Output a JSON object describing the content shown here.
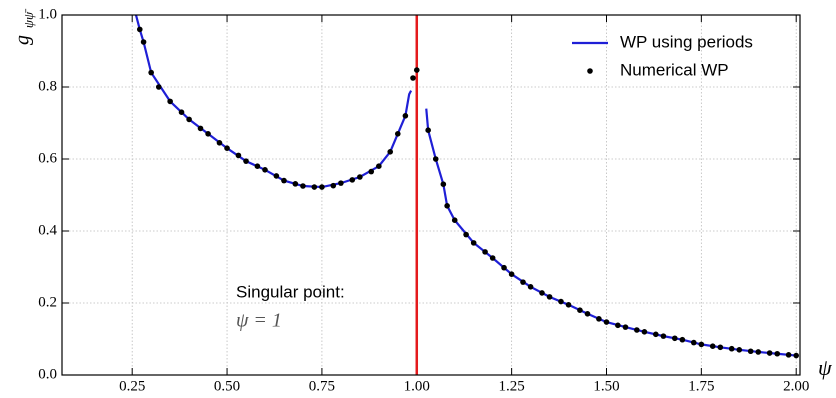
{
  "chart_data": {
    "type": "line",
    "xlabel": "ψ",
    "ylabel": "g",
    "ylabel_sub": "ψψ̄",
    "annotation_title": "Singular point:",
    "annotation_eq": "ψ = 1",
    "vline": {
      "x": 1.0,
      "color": "#e41a1c"
    },
    "xlim": [
      0.065,
      2.01
    ],
    "ylim": [
      0,
      1.0
    ],
    "xticks": [
      0.25,
      {
        "value": 0.5,
        "label": "0.50"
      },
      0.75,
      {
        "value": 1.0,
        "label": "1.00"
      },
      1.25,
      {
        "value": 1.5,
        "label": "1.50"
      },
      1.75,
      {
        "value": 2.0,
        "label": "2.00"
      }
    ],
    "yticks": [
      {
        "value": 0.0,
        "label": "0.0"
      },
      0.2,
      0.4,
      0.6,
      0.8,
      {
        "value": 1.0,
        "label": "1.0"
      }
    ],
    "grid": true,
    "legend": "upper right",
    "series": [
      {
        "name": "WP using periods",
        "color": "#1f1fd6",
        "style": "line",
        "x": [
          0.26,
          0.27,
          0.28,
          0.3,
          0.35,
          0.4,
          0.45,
          0.5,
          0.55,
          0.6,
          0.65,
          0.7,
          0.75,
          0.8,
          0.85,
          0.9,
          0.93,
          0.95,
          0.97,
          0.98,
          0.985,
          1.0,
          1.025,
          1.03,
          1.05,
          1.07,
          1.08,
          1.1,
          1.15,
          1.2,
          1.25,
          1.3,
          1.35,
          1.4,
          1.45,
          1.5,
          1.55,
          1.6,
          1.65,
          1.7,
          1.75,
          1.8,
          1.85,
          1.9,
          1.95,
          2.0
        ],
        "values": [
          1.0,
          0.96,
          0.925,
          0.84,
          0.76,
          0.71,
          0.67,
          0.63,
          0.594,
          0.57,
          0.54,
          0.525,
          0.522,
          0.533,
          0.55,
          0.58,
          0.62,
          0.67,
          0.72,
          0.78,
          0.79,
          null,
          0.74,
          0.68,
          0.6,
          0.53,
          0.47,
          0.43,
          0.367,
          0.325,
          0.28,
          0.245,
          0.217,
          0.195,
          0.17,
          0.147,
          0.133,
          0.12,
          0.108,
          0.098,
          0.085,
          0.077,
          0.07,
          0.064,
          0.059,
          0.054
        ]
      },
      {
        "name": "Numerical WP",
        "color": "#000000",
        "style": "scatter",
        "x": [
          0.27,
          0.28,
          0.3,
          0.32,
          0.35,
          0.38,
          0.4,
          0.43,
          0.45,
          0.48,
          0.5,
          0.53,
          0.55,
          0.58,
          0.6,
          0.63,
          0.65,
          0.68,
          0.7,
          0.73,
          0.75,
          0.78,
          0.8,
          0.83,
          0.85,
          0.88,
          0.9,
          0.93,
          0.95,
          0.97,
          0.99,
          1.0,
          1.03,
          1.05,
          1.07,
          1.08,
          1.1,
          1.13,
          1.15,
          1.18,
          1.2,
          1.23,
          1.25,
          1.28,
          1.3,
          1.33,
          1.35,
          1.38,
          1.4,
          1.43,
          1.45,
          1.48,
          1.5,
          1.53,
          1.55,
          1.58,
          1.6,
          1.63,
          1.65,
          1.68,
          1.7,
          1.73,
          1.75,
          1.78,
          1.8,
          1.83,
          1.85,
          1.88,
          1.9,
          1.93,
          1.95,
          1.98,
          2.0
        ],
        "values": [
          0.96,
          0.925,
          0.84,
          0.8,
          0.76,
          0.73,
          0.71,
          0.685,
          0.67,
          0.645,
          0.63,
          0.61,
          0.594,
          0.58,
          0.57,
          0.553,
          0.54,
          0.531,
          0.525,
          0.522,
          0.522,
          0.526,
          0.533,
          0.542,
          0.55,
          0.565,
          0.58,
          0.62,
          0.67,
          0.72,
          0.825,
          0.847,
          0.68,
          0.6,
          0.53,
          0.47,
          0.43,
          0.39,
          0.367,
          0.342,
          0.325,
          0.298,
          0.28,
          0.258,
          0.245,
          0.228,
          0.217,
          0.204,
          0.195,
          0.18,
          0.17,
          0.156,
          0.147,
          0.138,
          0.133,
          0.125,
          0.12,
          0.113,
          0.108,
          0.102,
          0.098,
          0.09,
          0.085,
          0.08,
          0.077,
          0.073,
          0.07,
          0.066,
          0.064,
          0.061,
          0.059,
          0.056,
          0.054
        ]
      }
    ]
  }
}
